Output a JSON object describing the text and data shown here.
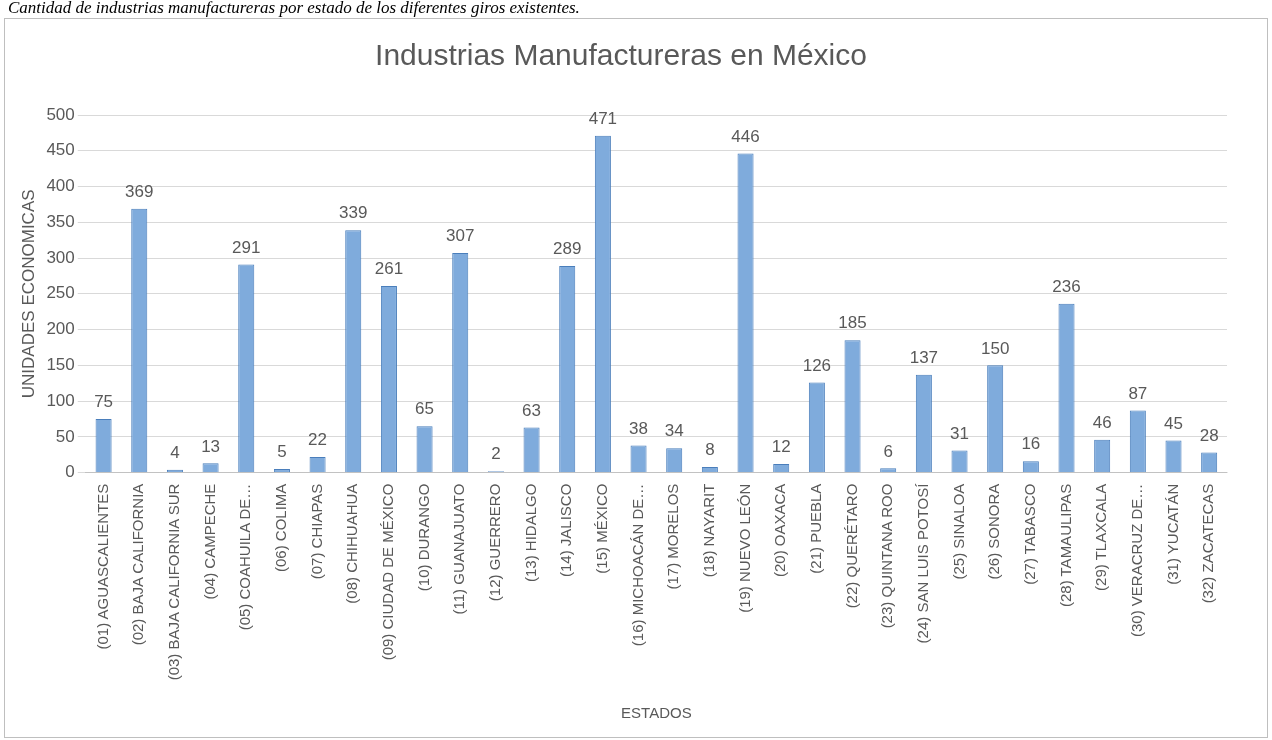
{
  "chart_data": {
    "type": "bar",
    "title": "Industrias Manufactureras en México",
    "xlabel": "ESTADOS",
    "ylabel": "UNIDADES ECONOMICAS",
    "annotations": [
      "Cantidad de industrias manufactureras por estado de los diferentes giros existentes."
    ],
    "categories": [
      "(01) AGUASCALIENTES",
      "(02) BAJA CALIFORNIA",
      "(03) BAJA CALIFORNIA SUR",
      "(04) CAMPECHE",
      "(05) COAHUILA DE…",
      "(06) COLIMA",
      "(07) CHIAPAS",
      "(08) CHIHUAHUA",
      "(09) CIUDAD DE MÉXICO",
      "(10) DURANGO",
      "(11) GUANAJUATO",
      "(12) GUERRERO",
      "(13) HIDALGO",
      "(14) JALISCO",
      "(15) MÉXICO",
      "(16) MICHOACÁN DE…",
      "(17) MORELOS",
      "(18) NAYARIT",
      "(19) NUEVO LEÓN",
      "(20) OAXACA",
      "(21) PUEBLA",
      "(22) QUERÉTARO",
      "(23) QUINTANA ROO",
      "(24) SAN LUIS POTOSÍ",
      "(25) SINALOA",
      "(26) SONORA",
      "(27) TABASCO",
      "(28) TAMAULIPAS",
      "(29) TLAXCALA",
      "(30) VERACRUZ DE…",
      "(31) YUCATÁN",
      "(32) ZACATECAS"
    ],
    "values": [
      75,
      369,
      4,
      13,
      291,
      5,
      22,
      339,
      261,
      65,
      307,
      2,
      63,
      289,
      471,
      38,
      34,
      8,
      446,
      12,
      126,
      185,
      6,
      137,
      31,
      150,
      16,
      236,
      46,
      87,
      45,
      28
    ],
    "color": "#7fabdc",
    "ylim": [
      0,
      500
    ],
    "yticks": [
      0,
      50,
      100,
      150,
      200,
      250,
      300,
      350,
      400,
      450,
      500
    ],
    "grid": "y",
    "data_labels": true,
    "legend": false
  }
}
